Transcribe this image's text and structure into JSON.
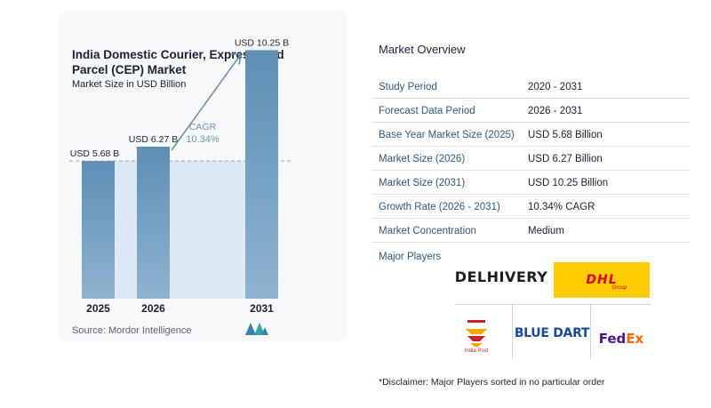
{
  "chart_data": {
    "type": "bar",
    "title": "India Domestic Courier, Express, and Parcel (CEP) Market",
    "subtitle": "Market Size in USD Billion",
    "categories": [
      "2025",
      "2026",
      "2031"
    ],
    "values": [
      5.68,
      6.27,
      10.25
    ],
    "value_labels": [
      "USD 5.68 B",
      "USD 6.27 B",
      "USD 10.25 B"
    ],
    "cagr_label": "CAGR",
    "cagr_value": "10.34%",
    "ylim": [
      0,
      11
    ],
    "grid": false,
    "colors": {
      "bar_top": "#5d8fb5",
      "bar_bottom": "#8fb3d0",
      "band": "#dde9f4",
      "arrow": "#5d8fb5"
    }
  },
  "source": "Source: Mordor Intelligence",
  "overview": {
    "title": "Market Overview",
    "rows": [
      {
        "label": "Study Period",
        "value": "2020 - 2031"
      },
      {
        "label": "Forecast Data Period",
        "value": "2026 - 2031"
      },
      {
        "label": "Base Year Market Size (2025)",
        "value": "USD 5.68 Billion"
      },
      {
        "label": "Market Size (2026)",
        "value": "USD 6.27 Billion"
      },
      {
        "label": "Market Size (2031)",
        "value": "USD 10.25 Billion"
      },
      {
        "label": "Growth Rate (2026 - 2031)",
        "value": "10.34% CAGR"
      },
      {
        "label": "Market Concentration",
        "value": "Medium"
      }
    ],
    "players_title": "Major Players",
    "players": {
      "delhivery": "DELHIVERY",
      "dhl": "DHL",
      "dhl_group": "Group",
      "indiapost": "India Post",
      "bluedart": "BLUE DART",
      "fedex_fed": "Fed",
      "fedex_ex": "Ex"
    },
    "disclaimer": "*Disclaimer: Major Players sorted in no particular order"
  }
}
